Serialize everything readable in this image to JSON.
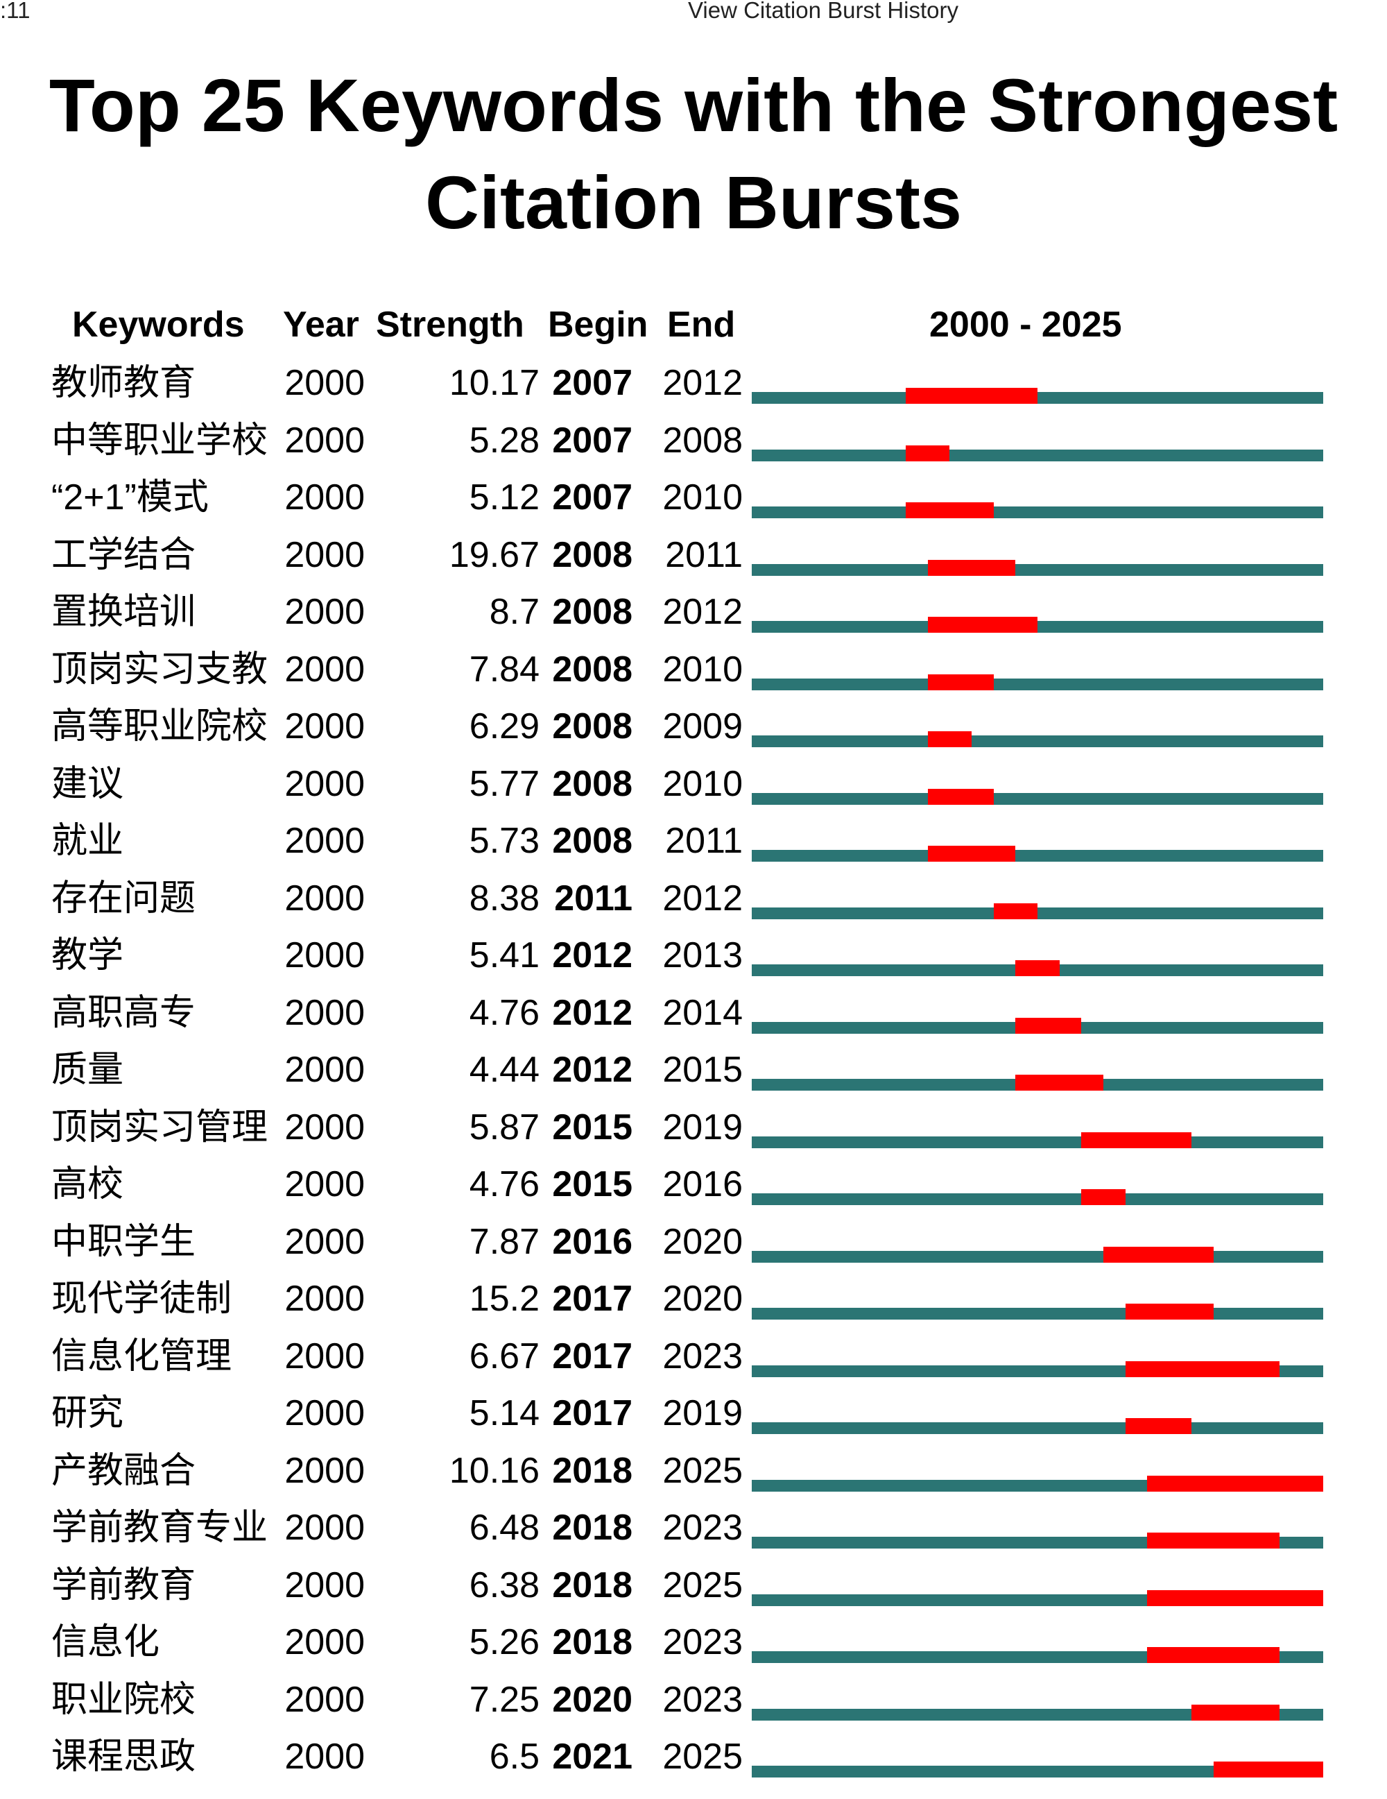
{
  "window": {
    "time_fragment": ":11",
    "title": "View Citation Burst History"
  },
  "chart_data": {
    "type": "table",
    "title": "Top 25 Keywords with the Strongest Citation Bursts",
    "title_lines": [
      "Top 25 Keywords with the Strongest",
      "Citation Bursts"
    ],
    "headers": {
      "keywords": "Keywords",
      "year": "Year",
      "strength": "Strength",
      "begin": "Begin",
      "end": "End",
      "range": "2000 - 2025"
    },
    "range": [
      2000,
      2025
    ],
    "colors": {
      "baseline": "#2b7574",
      "burst": "#ff0000"
    },
    "rows": [
      {
        "keyword": "教师教育",
        "year": "2000",
        "strength": "10.17",
        "begin": "2007",
        "end": "2012"
      },
      {
        "keyword": "中等职业学校",
        "year": "2000",
        "strength": "5.28",
        "begin": "2007",
        "end": "2008"
      },
      {
        "keyword": "“2+1”模式",
        "year": "2000",
        "strength": "5.12",
        "begin": "2007",
        "end": "2010"
      },
      {
        "keyword": "工学结合",
        "year": "2000",
        "strength": "19.67",
        "begin": "2008",
        "end": "2011"
      },
      {
        "keyword": "置换培训",
        "year": "2000",
        "strength": "8.7",
        "begin": "2008",
        "end": "2012"
      },
      {
        "keyword": "顶岗实习支教",
        "year": "2000",
        "strength": "7.84",
        "begin": "2008",
        "end": "2010"
      },
      {
        "keyword": "高等职业院校",
        "year": "2000",
        "strength": "6.29",
        "begin": "2008",
        "end": "2009"
      },
      {
        "keyword": "建议",
        "year": "2000",
        "strength": "5.77",
        "begin": "2008",
        "end": "2010"
      },
      {
        "keyword": "就业",
        "year": "2000",
        "strength": "5.73",
        "begin": "2008",
        "end": "2011"
      },
      {
        "keyword": "存在问题",
        "year": "2000",
        "strength": "8.38",
        "begin": "2011",
        "end": "2012"
      },
      {
        "keyword": "教学",
        "year": "2000",
        "strength": "5.41",
        "begin": "2012",
        "end": "2013"
      },
      {
        "keyword": "高职高专",
        "year": "2000",
        "strength": "4.76",
        "begin": "2012",
        "end": "2014"
      },
      {
        "keyword": "质量",
        "year": "2000",
        "strength": "4.44",
        "begin": "2012",
        "end": "2015"
      },
      {
        "keyword": "顶岗实习管理",
        "year": "2000",
        "strength": "5.87",
        "begin": "2015",
        "end": "2019"
      },
      {
        "keyword": "高校",
        "year": "2000",
        "strength": "4.76",
        "begin": "2015",
        "end": "2016"
      },
      {
        "keyword": "中职学生",
        "year": "2000",
        "strength": "7.87",
        "begin": "2016",
        "end": "2020"
      },
      {
        "keyword": "现代学徒制",
        "year": "2000",
        "strength": "15.2",
        "begin": "2017",
        "end": "2020"
      },
      {
        "keyword": "信息化管理",
        "year": "2000",
        "strength": "6.67",
        "begin": "2017",
        "end": "2023"
      },
      {
        "keyword": "研究",
        "year": "2000",
        "strength": "5.14",
        "begin": "2017",
        "end": "2019"
      },
      {
        "keyword": "产教融合",
        "year": "2000",
        "strength": "10.16",
        "begin": "2018",
        "end": "2025"
      },
      {
        "keyword": "学前教育专业",
        "year": "2000",
        "strength": "6.48",
        "begin": "2018",
        "end": "2023"
      },
      {
        "keyword": "学前教育",
        "year": "2000",
        "strength": "6.38",
        "begin": "2018",
        "end": "2025"
      },
      {
        "keyword": "信息化",
        "year": "2000",
        "strength": "5.26",
        "begin": "2018",
        "end": "2023"
      },
      {
        "keyword": "职业院校",
        "year": "2000",
        "strength": "7.25",
        "begin": "2020",
        "end": "2023"
      },
      {
        "keyword": "课程思政",
        "year": "2000",
        "strength": "6.5",
        "begin": "2021",
        "end": "2025"
      }
    ]
  }
}
